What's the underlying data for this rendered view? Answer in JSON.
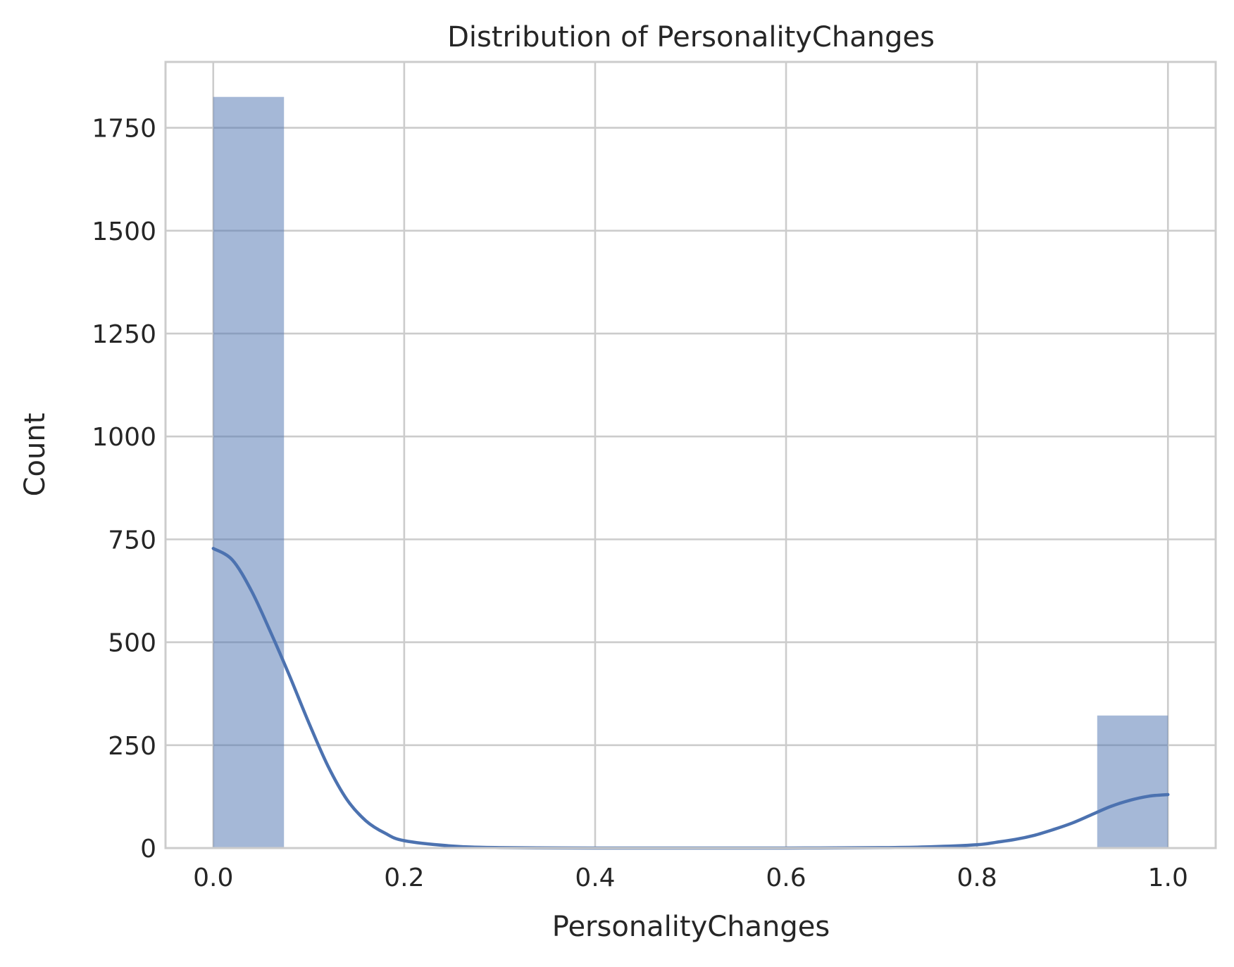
{
  "chart_data": {
    "type": "histogram",
    "title": "Distribution of PersonalityChanges",
    "xlabel": "PersonalityChanges",
    "ylabel": "Count",
    "xlim": [
      -0.05,
      1.05
    ],
    "ylim": [
      0,
      1910
    ],
    "x_ticks": [
      0.0,
      0.2,
      0.4,
      0.6,
      0.8,
      1.0
    ],
    "x_tick_labels": [
      "0.0",
      "0.2",
      "0.4",
      "0.6",
      "0.8",
      "1.0"
    ],
    "y_ticks": [
      0,
      250,
      500,
      750,
      1000,
      1250,
      1500,
      1750
    ],
    "y_tick_labels": [
      "0",
      "250",
      "500",
      "750",
      "1000",
      "1250",
      "1500",
      "1750"
    ],
    "grid": true,
    "bins": [
      {
        "x0": 0.0,
        "x1": 0.0741,
        "count": 1825
      },
      {
        "x0": 0.9259,
        "x1": 1.0,
        "count": 322
      }
    ],
    "kde": {
      "x": [
        0.0,
        0.02,
        0.04,
        0.06,
        0.08,
        0.1,
        0.12,
        0.14,
        0.16,
        0.18,
        0.2,
        0.25,
        0.3,
        0.4,
        0.5,
        0.6,
        0.7,
        0.75,
        0.8,
        0.82,
        0.84,
        0.86,
        0.88,
        0.9,
        0.92,
        0.94,
        0.96,
        0.98,
        1.0
      ],
      "y": [
        728,
        700,
        625,
        525,
        418,
        305,
        200,
        118,
        66,
        36,
        18,
        5,
        1,
        0,
        0,
        0,
        1,
        3,
        8,
        14,
        21,
        31,
        45,
        61,
        81,
        101,
        116,
        126,
        130
      ]
    },
    "colors": {
      "bar": "#4c72b0",
      "line": "#4c72b0",
      "grid": "#cccccc",
      "text": "#262626"
    }
  }
}
